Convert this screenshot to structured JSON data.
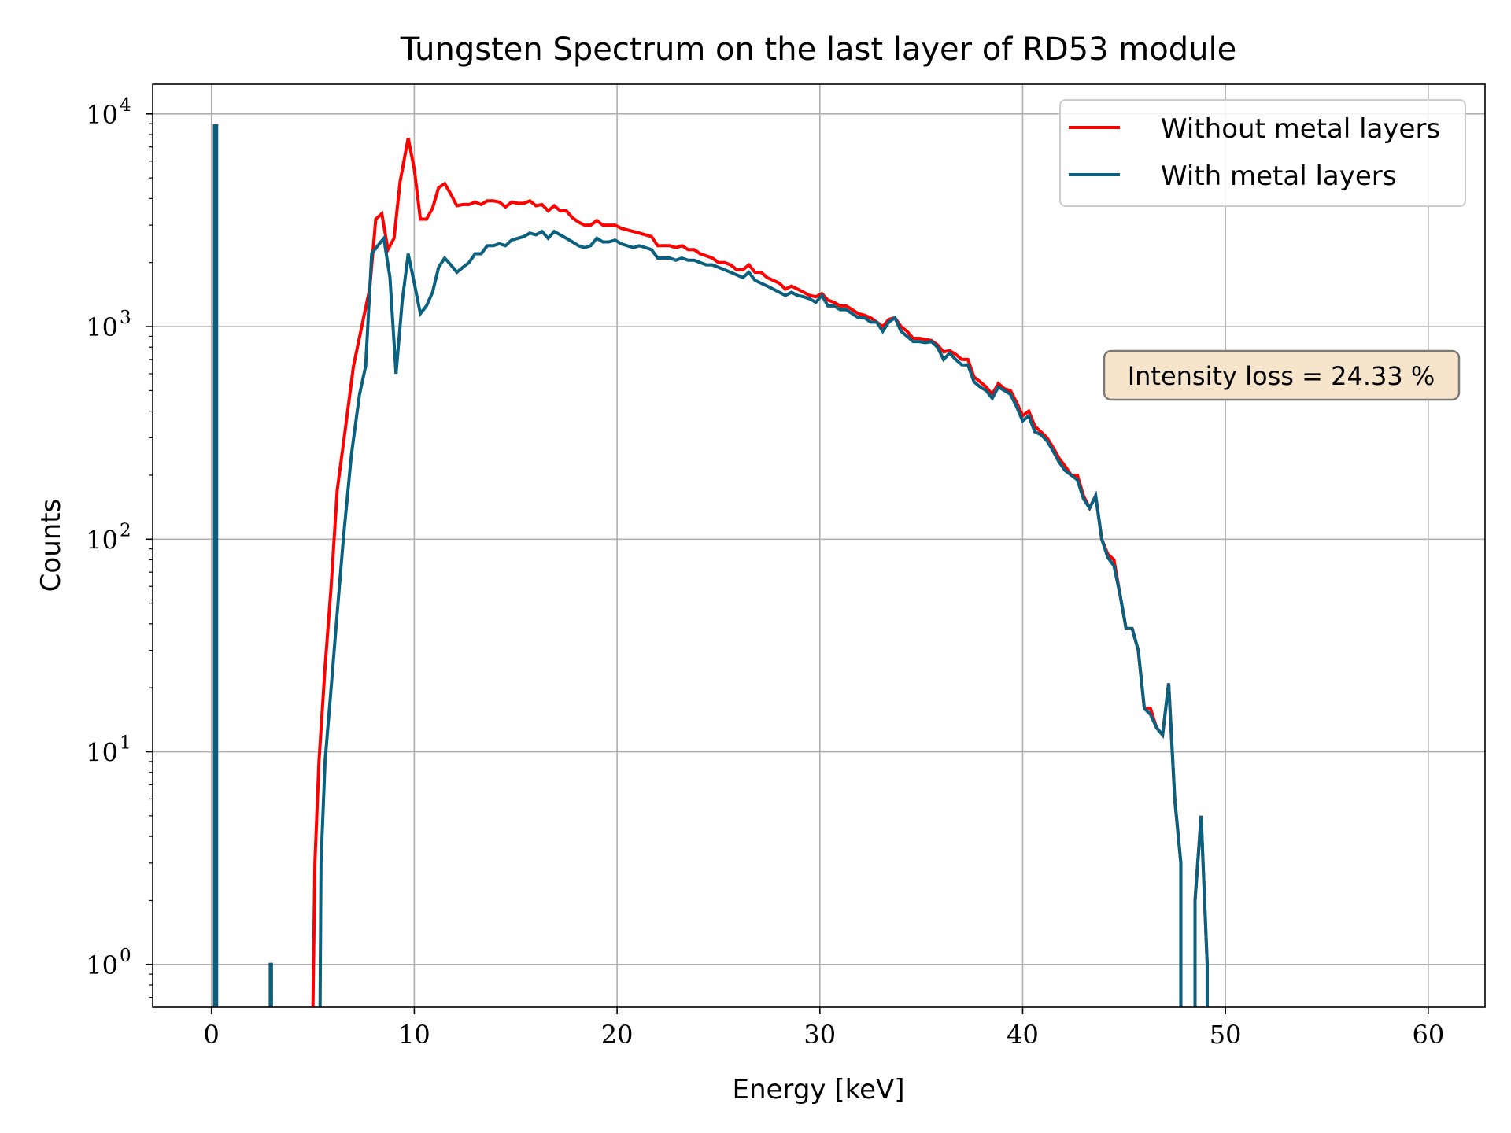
{
  "chart_data": {
    "type": "line",
    "title": "Tungsten Spectrum on the last layer of RD53 module",
    "xlabel": "Energy [keV]",
    "ylabel": "Counts",
    "xlim": [
      -2.9,
      62.8
    ],
    "ylim": [
      0.63,
      13800
    ],
    "yscale": "log",
    "grid": true,
    "legend_position": "top-right",
    "x_ticks": [
      "0",
      "10",
      "20",
      "30",
      "40",
      "50",
      "60"
    ],
    "y_ticks": [
      {
        "base": "10",
        "exp": "0"
      },
      {
        "base": "10",
        "exp": "1"
      },
      {
        "base": "10",
        "exp": "2"
      },
      {
        "base": "10",
        "exp": "3"
      },
      {
        "base": "10",
        "exp": "4"
      }
    ],
    "annotation": "Intensity loss = 24.33 %",
    "series": [
      {
        "name": "Without metal layers",
        "color": "#ff0000",
        "points": [
          [
            0.15,
            0.1
          ],
          [
            0.15,
            8800
          ],
          [
            0.25,
            8800
          ],
          [
            0.25,
            0.1
          ],
          [
            2.9,
            0.1
          ],
          [
            2.9,
            1.0
          ],
          [
            2.95,
            1.0
          ],
          [
            2.95,
            0.1
          ],
          [
            4.95,
            0.1
          ],
          [
            5.0,
            0.6
          ],
          [
            5.1,
            3
          ],
          [
            5.3,
            9
          ],
          [
            5.6,
            25
          ],
          [
            5.9,
            60
          ],
          [
            6.2,
            170
          ],
          [
            6.6,
            330
          ],
          [
            7.0,
            650
          ],
          [
            7.5,
            1100
          ],
          [
            7.8,
            1500
          ],
          [
            8.1,
            3200
          ],
          [
            8.4,
            3400
          ],
          [
            8.7,
            2300
          ],
          [
            9.0,
            2600
          ],
          [
            9.3,
            4800
          ],
          [
            9.7,
            7700
          ],
          [
            10.0,
            5500
          ],
          [
            10.3,
            3200
          ],
          [
            10.6,
            3200
          ],
          [
            10.9,
            3600
          ],
          [
            11.2,
            4500
          ],
          [
            11.5,
            4700
          ],
          [
            11.8,
            4200
          ],
          [
            12.1,
            3700
          ],
          [
            12.4,
            3750
          ],
          [
            12.7,
            3750
          ],
          [
            13.0,
            3850
          ],
          [
            13.3,
            3750
          ],
          [
            13.6,
            3900
          ],
          [
            13.9,
            3900
          ],
          [
            14.2,
            3850
          ],
          [
            14.5,
            3650
          ],
          [
            14.8,
            3850
          ],
          [
            15.1,
            3800
          ],
          [
            15.4,
            3800
          ],
          [
            15.7,
            3900
          ],
          [
            16.0,
            3700
          ],
          [
            16.3,
            3750
          ],
          [
            16.6,
            3500
          ],
          [
            16.9,
            3700
          ],
          [
            17.2,
            3500
          ],
          [
            17.5,
            3500
          ],
          [
            17.8,
            3250
          ],
          [
            18.1,
            3100
          ],
          [
            18.4,
            3000
          ],
          [
            18.7,
            3000
          ],
          [
            19.0,
            3150
          ],
          [
            19.3,
            3000
          ],
          [
            19.6,
            3000
          ],
          [
            19.9,
            3000
          ],
          [
            20.2,
            2900
          ],
          [
            20.5,
            2850
          ],
          [
            20.8,
            2800
          ],
          [
            21.1,
            2750
          ],
          [
            21.4,
            2700
          ],
          [
            21.7,
            2650
          ],
          [
            22.0,
            2400
          ],
          [
            22.3,
            2400
          ],
          [
            22.6,
            2400
          ],
          [
            22.9,
            2350
          ],
          [
            23.2,
            2400
          ],
          [
            23.5,
            2300
          ],
          [
            23.8,
            2300
          ],
          [
            24.1,
            2200
          ],
          [
            24.4,
            2150
          ],
          [
            24.7,
            2100
          ],
          [
            25.0,
            2000
          ],
          [
            25.3,
            2000
          ],
          [
            25.6,
            1950
          ],
          [
            25.9,
            1850
          ],
          [
            26.2,
            1850
          ],
          [
            26.5,
            1950
          ],
          [
            26.8,
            1800
          ],
          [
            27.1,
            1800
          ],
          [
            27.4,
            1700
          ],
          [
            27.7,
            1650
          ],
          [
            28.0,
            1600
          ],
          [
            28.3,
            1500
          ],
          [
            28.6,
            1550
          ],
          [
            28.9,
            1500
          ],
          [
            29.2,
            1450
          ],
          [
            29.5,
            1400
          ],
          [
            29.8,
            1380
          ],
          [
            30.1,
            1430
          ],
          [
            30.4,
            1330
          ],
          [
            30.7,
            1300
          ],
          [
            31.0,
            1250
          ],
          [
            31.3,
            1250
          ],
          [
            31.6,
            1200
          ],
          [
            31.9,
            1150
          ],
          [
            32.2,
            1130
          ],
          [
            32.5,
            1100
          ],
          [
            32.8,
            1050
          ],
          [
            33.1,
            1000
          ],
          [
            33.4,
            1080
          ],
          [
            33.7,
            1100
          ],
          [
            34.0,
            1000
          ],
          [
            34.3,
            950
          ],
          [
            34.6,
            880
          ],
          [
            34.9,
            880
          ],
          [
            35.2,
            870
          ],
          [
            35.5,
            860
          ],
          [
            35.8,
            820
          ],
          [
            36.1,
            760
          ],
          [
            36.4,
            770
          ],
          [
            36.7,
            740
          ],
          [
            37.0,
            700
          ],
          [
            37.3,
            700
          ],
          [
            37.6,
            580
          ],
          [
            37.9,
            550
          ],
          [
            38.2,
            520
          ],
          [
            38.5,
            480
          ],
          [
            38.8,
            540
          ],
          [
            39.1,
            510
          ],
          [
            39.4,
            500
          ],
          [
            39.7,
            440
          ],
          [
            40.0,
            380
          ],
          [
            40.3,
            400
          ],
          [
            40.6,
            340
          ],
          [
            40.9,
            320
          ],
          [
            41.2,
            300
          ],
          [
            41.5,
            270
          ],
          [
            41.8,
            240
          ],
          [
            42.1,
            220
          ],
          [
            42.4,
            200
          ],
          [
            42.7,
            200
          ],
          [
            43.0,
            160
          ],
          [
            43.3,
            140
          ],
          [
            43.6,
            160
          ],
          [
            43.9,
            100
          ],
          [
            44.2,
            85
          ],
          [
            44.5,
            80
          ],
          [
            44.8,
            55
          ],
          [
            45.1,
            38
          ],
          [
            45.4,
            38
          ],
          [
            45.7,
            30
          ],
          [
            46.0,
            16
          ],
          [
            46.3,
            16
          ],
          [
            46.6,
            13
          ],
          [
            46.9,
            12
          ],
          [
            47.2,
            21
          ],
          [
            47.5,
            6
          ],
          [
            47.8,
            3
          ],
          [
            47.8,
            0.1
          ],
          [
            48.5,
            0.1
          ],
          [
            48.5,
            2
          ],
          [
            48.8,
            5
          ],
          [
            49.1,
            1
          ],
          [
            49.1,
            0.1
          ]
        ]
      },
      {
        "name": "With metal layers",
        "color": "#0a607f",
        "points": [
          [
            0.15,
            0.1
          ],
          [
            0.15,
            8800
          ],
          [
            0.25,
            8800
          ],
          [
            0.25,
            0.1
          ],
          [
            2.9,
            0.1
          ],
          [
            2.9,
            1.0
          ],
          [
            2.95,
            1.0
          ],
          [
            2.95,
            0.1
          ],
          [
            5.3,
            0.1
          ],
          [
            5.4,
            3
          ],
          [
            5.6,
            9
          ],
          [
            5.9,
            20
          ],
          [
            6.2,
            45
          ],
          [
            6.5,
            100
          ],
          [
            6.9,
            250
          ],
          [
            7.3,
            480
          ],
          [
            7.6,
            650
          ],
          [
            7.9,
            2200
          ],
          [
            8.2,
            2400
          ],
          [
            8.5,
            2600
          ],
          [
            8.8,
            1700
          ],
          [
            9.1,
            600
          ],
          [
            9.4,
            1300
          ],
          [
            9.7,
            2200
          ],
          [
            10.0,
            1600
          ],
          [
            10.3,
            1150
          ],
          [
            10.6,
            1250
          ],
          [
            10.9,
            1450
          ],
          [
            11.2,
            1900
          ],
          [
            11.5,
            2100
          ],
          [
            11.8,
            1950
          ],
          [
            12.1,
            1800
          ],
          [
            12.4,
            1900
          ],
          [
            12.7,
            2000
          ],
          [
            13.0,
            2200
          ],
          [
            13.3,
            2200
          ],
          [
            13.6,
            2400
          ],
          [
            13.9,
            2400
          ],
          [
            14.2,
            2450
          ],
          [
            14.5,
            2400
          ],
          [
            14.8,
            2550
          ],
          [
            15.1,
            2600
          ],
          [
            15.4,
            2650
          ],
          [
            15.7,
            2750
          ],
          [
            16.0,
            2700
          ],
          [
            16.3,
            2800
          ],
          [
            16.6,
            2600
          ],
          [
            16.9,
            2800
          ],
          [
            17.2,
            2700
          ],
          [
            17.5,
            2600
          ],
          [
            17.8,
            2500
          ],
          [
            18.1,
            2400
          ],
          [
            18.4,
            2350
          ],
          [
            18.7,
            2400
          ],
          [
            19.0,
            2600
          ],
          [
            19.3,
            2500
          ],
          [
            19.6,
            2500
          ],
          [
            19.9,
            2550
          ],
          [
            20.2,
            2450
          ],
          [
            20.5,
            2400
          ],
          [
            20.8,
            2350
          ],
          [
            21.1,
            2400
          ],
          [
            21.4,
            2350
          ],
          [
            21.7,
            2300
          ],
          [
            22.0,
            2100
          ],
          [
            22.3,
            2100
          ],
          [
            22.6,
            2100
          ],
          [
            22.9,
            2050
          ],
          [
            23.2,
            2100
          ],
          [
            23.5,
            2050
          ],
          [
            23.8,
            2050
          ],
          [
            24.1,
            2000
          ],
          [
            24.4,
            1950
          ],
          [
            24.7,
            1950
          ],
          [
            25.0,
            1900
          ],
          [
            25.3,
            1850
          ],
          [
            25.6,
            1800
          ],
          [
            25.9,
            1750
          ],
          [
            26.2,
            1700
          ],
          [
            26.5,
            1800
          ],
          [
            26.8,
            1650
          ],
          [
            27.1,
            1600
          ],
          [
            27.4,
            1550
          ],
          [
            27.7,
            1500
          ],
          [
            28.0,
            1450
          ],
          [
            28.3,
            1400
          ],
          [
            28.6,
            1450
          ],
          [
            28.9,
            1400
          ],
          [
            29.2,
            1380
          ],
          [
            29.5,
            1350
          ],
          [
            29.8,
            1300
          ],
          [
            30.1,
            1400
          ],
          [
            30.4,
            1250
          ],
          [
            30.7,
            1250
          ],
          [
            31.0,
            1200
          ],
          [
            31.3,
            1200
          ],
          [
            31.6,
            1150
          ],
          [
            31.9,
            1100
          ],
          [
            32.2,
            1100
          ],
          [
            32.5,
            1050
          ],
          [
            32.8,
            1050
          ],
          [
            33.1,
            950
          ],
          [
            33.4,
            1050
          ],
          [
            33.7,
            1100
          ],
          [
            34.0,
            950
          ],
          [
            34.3,
            900
          ],
          [
            34.6,
            850
          ],
          [
            34.9,
            850
          ],
          [
            35.2,
            840
          ],
          [
            35.5,
            850
          ],
          [
            35.8,
            800
          ],
          [
            36.1,
            700
          ],
          [
            36.4,
            750
          ],
          [
            36.7,
            700
          ],
          [
            37.0,
            660
          ],
          [
            37.3,
            660
          ],
          [
            37.6,
            550
          ],
          [
            37.9,
            520
          ],
          [
            38.2,
            500
          ],
          [
            38.5,
            460
          ],
          [
            38.8,
            520
          ],
          [
            39.1,
            500
          ],
          [
            39.4,
            480
          ],
          [
            39.7,
            420
          ],
          [
            40.0,
            360
          ],
          [
            40.3,
            380
          ],
          [
            40.6,
            320
          ],
          [
            40.9,
            310
          ],
          [
            41.2,
            290
          ],
          [
            41.5,
            260
          ],
          [
            41.8,
            230
          ],
          [
            42.1,
            210
          ],
          [
            42.4,
            200
          ],
          [
            42.7,
            190
          ],
          [
            43.0,
            155
          ],
          [
            43.3,
            140
          ],
          [
            43.6,
            160
          ],
          [
            43.9,
            100
          ],
          [
            44.2,
            82
          ],
          [
            44.5,
            75
          ],
          [
            44.8,
            55
          ],
          [
            45.1,
            38
          ],
          [
            45.4,
            38
          ],
          [
            45.7,
            30
          ],
          [
            46.0,
            16
          ],
          [
            46.3,
            15
          ],
          [
            46.6,
            13
          ],
          [
            46.9,
            12
          ],
          [
            47.2,
            21
          ],
          [
            47.5,
            6
          ],
          [
            47.8,
            3
          ],
          [
            47.8,
            0.1
          ],
          [
            48.5,
            0.1
          ],
          [
            48.5,
            2
          ],
          [
            48.8,
            5
          ],
          [
            49.1,
            1
          ],
          [
            49.1,
            0.1
          ]
        ]
      }
    ]
  }
}
